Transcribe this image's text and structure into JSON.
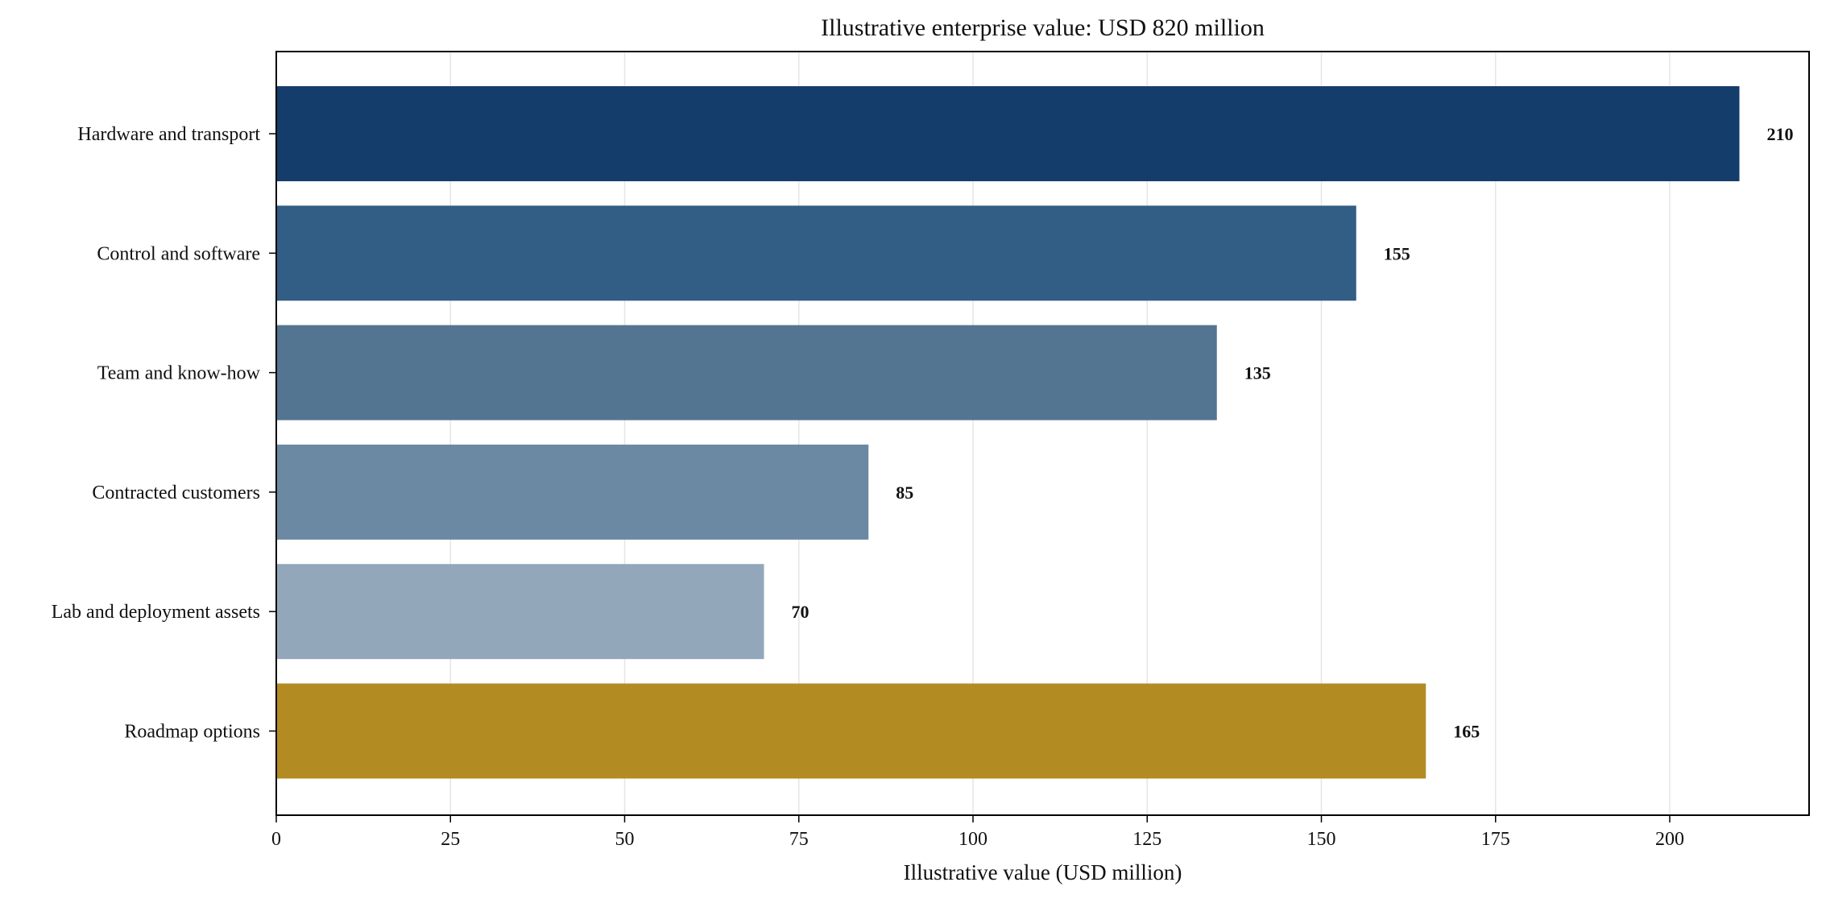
{
  "chart_data": {
    "type": "bar",
    "orientation": "horizontal",
    "title": "Illustrative enterprise value: USD 820 million",
    "xlabel": "Illustrative value (USD million)",
    "ylabel": "",
    "categories": [
      "Hardware and transport",
      "Control and software",
      "Team and know-how",
      "Contracted customers",
      "Lab and deployment assets",
      "Roadmap options"
    ],
    "values": [
      210,
      155,
      135,
      85,
      70,
      165
    ],
    "value_labels": [
      "210",
      "155",
      "135",
      "85",
      "70",
      "165"
    ],
    "colors": [
      "#143d6b",
      "#325d85",
      "#537592",
      "#6c89a3",
      "#92a7b9",
      "#b28b23"
    ],
    "xlim": [
      0,
      220
    ],
    "xticks": [
      0,
      25,
      50,
      75,
      100,
      125,
      150,
      175,
      200
    ],
    "xtick_labels": [
      "0",
      "25",
      "50",
      "75",
      "100",
      "125",
      "150",
      "175",
      "200"
    ],
    "grid": "vertical",
    "legend": "none"
  }
}
